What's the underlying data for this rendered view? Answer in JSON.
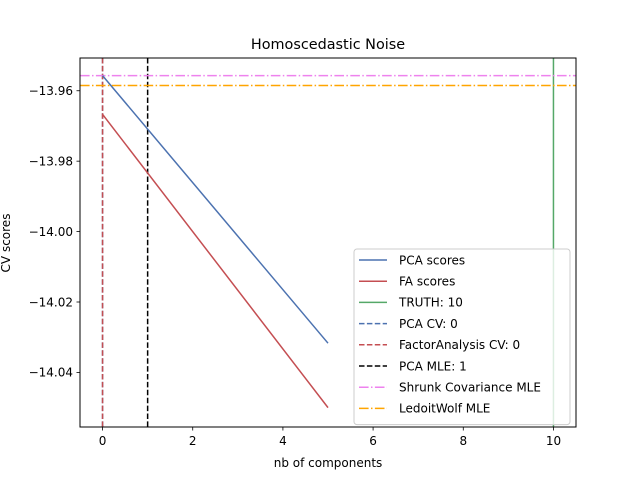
{
  "chart_data": {
    "type": "line",
    "title": "Homoscedastic Noise",
    "xlabel": "nb of components",
    "ylabel": "CV scores",
    "xlim": [
      -0.5,
      10.5
    ],
    "ylim": [
      -14.0555,
      -13.9507
    ],
    "x_ticks": [
      0,
      2,
      4,
      6,
      8,
      10
    ],
    "y_ticks": [
      -13.96,
      -13.98,
      -14.0,
      -14.02,
      -14.04
    ],
    "grid": false,
    "legend_position": "lower-right",
    "series": [
      {
        "name": "PCA scores",
        "color": "#4c72b0",
        "style": "solid",
        "x": [
          0,
          5
        ],
        "y": [
          -13.9557,
          -14.0317
        ]
      },
      {
        "name": "FA scores",
        "color": "#c44e52",
        "style": "solid",
        "x": [
          0,
          5
        ],
        "y": [
          -13.9667,
          -14.05
        ]
      }
    ],
    "vlines": [
      {
        "name": "TRUTH: 10",
        "color": "#55a868",
        "style": "solid",
        "x": 10
      },
      {
        "name": "PCA CV: 0",
        "color": "#4c72b0",
        "style": "dashed",
        "x": 0
      },
      {
        "name": "FactorAnalysis CV: 0",
        "color": "#c44e52",
        "style": "dashed",
        "x": 0
      },
      {
        "name": "PCA MLE: 1",
        "color": "#000000",
        "style": "dashed",
        "x": 1
      }
    ],
    "hlines": [
      {
        "name": "Shrunk Covariance MLE",
        "color": "#ee82ee",
        "style": "dashdot",
        "y": -13.9557
      },
      {
        "name": "LedoitWolf MLE",
        "color": "#ffa500",
        "style": "dashdot",
        "y": -13.9585
      }
    ],
    "legend_order": [
      "PCA scores",
      "FA scores",
      "TRUTH: 10",
      "PCA CV: 0",
      "FactorAnalysis CV: 0",
      "PCA MLE: 1",
      "Shrunk Covariance MLE",
      "LedoitWolf MLE"
    ]
  }
}
